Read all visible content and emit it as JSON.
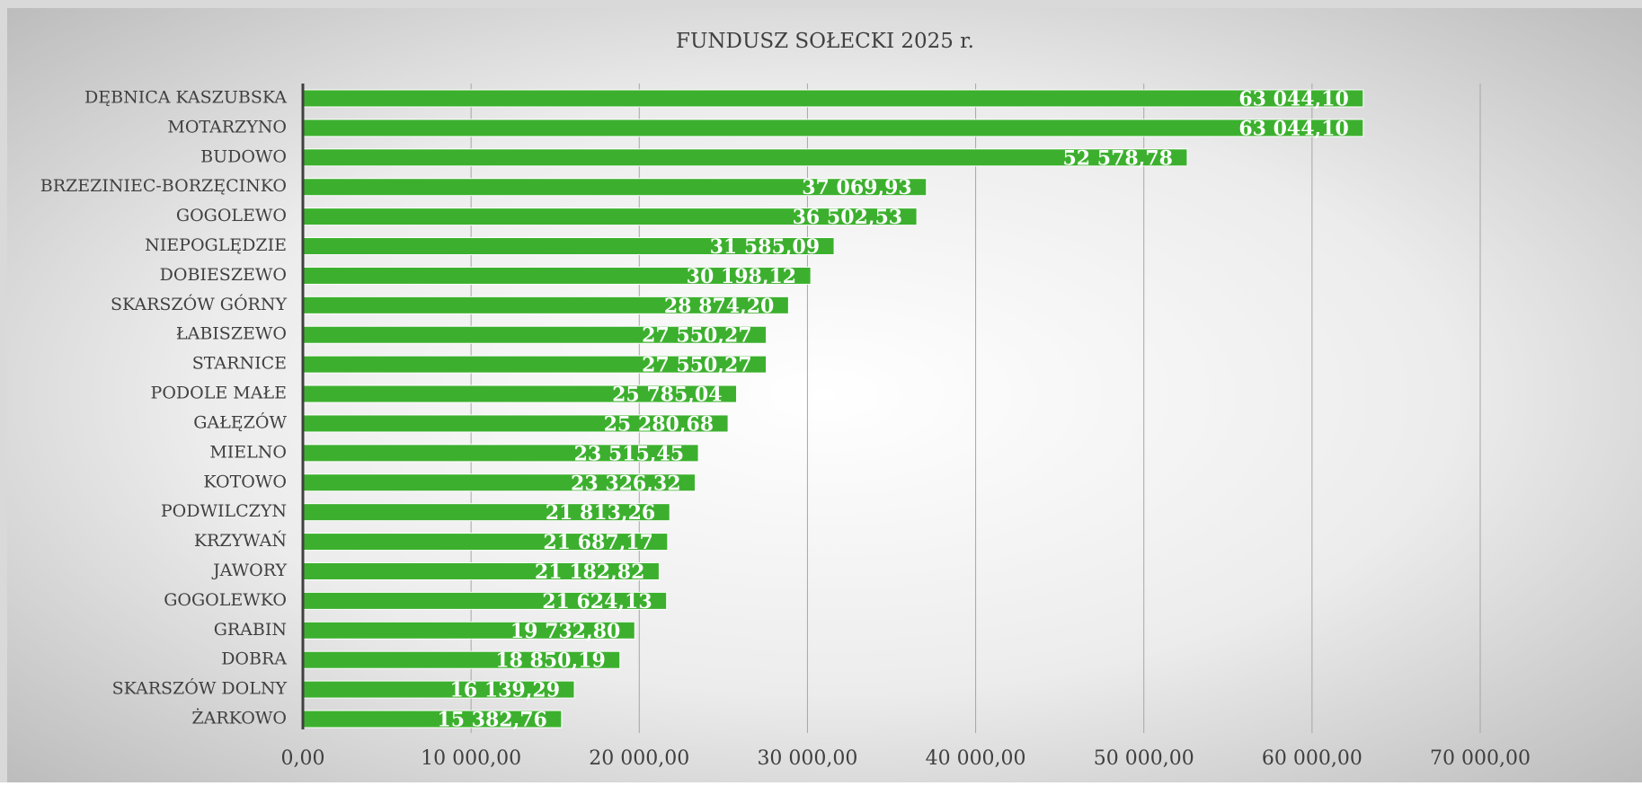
{
  "chart_data": {
    "type": "bar",
    "orientation": "horizontal",
    "title": "FUNDUSZ SOŁECKI 2025 r.",
    "categories": [
      "DĘBNICA KASZUBSKA",
      "MOTARZYNO",
      "BUDOWO",
      "BRZEZINIEC-BORZĘCINKO",
      "GOGOLEWO",
      "NIEPOGLĘDZIE",
      "DOBIESZEWO",
      "SKARSZÓW GÓRNY",
      "ŁABISZEWO",
      "STARNICE",
      "PODOLE MAŁE",
      "GAŁĘZÓW",
      "MIELNO",
      "KOTOWO",
      "PODWILCZYN",
      "KRZYWAŃ",
      "JAWORY",
      "GOGOLEWKO",
      "GRABIN",
      "DOBRA",
      "SKARSZÓW DOLNY",
      "ŻARKOWO"
    ],
    "values": [
      63044.1,
      63044.1,
      52578.78,
      37069.93,
      36502.53,
      31585.09,
      30198.12,
      28874.2,
      27550.27,
      27550.27,
      25785.04,
      25280.68,
      23515.45,
      23326.32,
      21813.26,
      21687.17,
      21182.82,
      21624.13,
      19732.8,
      18850.19,
      16139.29,
      15382.76
    ],
    "value_labels": [
      "63 044,10",
      "63 044,10",
      "52 578,78",
      "37 069,93",
      "36 502,53",
      "31 585,09",
      "30 198,12",
      "28 874,20",
      "27 550,27",
      "27 550,27",
      "25 785,04",
      "25 280,68",
      "23 515,45",
      "23 326,32",
      "21 813,26",
      "21 687,17",
      "21 182,82",
      "21 624,13",
      "19 732,80",
      "18 850,19",
      "16 139,29",
      "15 382,76"
    ],
    "color": "#3cb02e",
    "xlim": [
      0,
      70000
    ],
    "xticks": [
      {
        "value": 0,
        "label": "0,00"
      },
      {
        "value": 10000,
        "label": "10 000,00"
      },
      {
        "value": 20000,
        "label": "20 000,00"
      },
      {
        "value": 30000,
        "label": "30 000,00"
      },
      {
        "value": 40000,
        "label": "40 000,00"
      },
      {
        "value": 50000,
        "label": "50 000,00"
      },
      {
        "value": 60000,
        "label": "60 000,00"
      },
      {
        "value": 70000,
        "label": "70 000,00"
      }
    ],
    "grid": true
  }
}
